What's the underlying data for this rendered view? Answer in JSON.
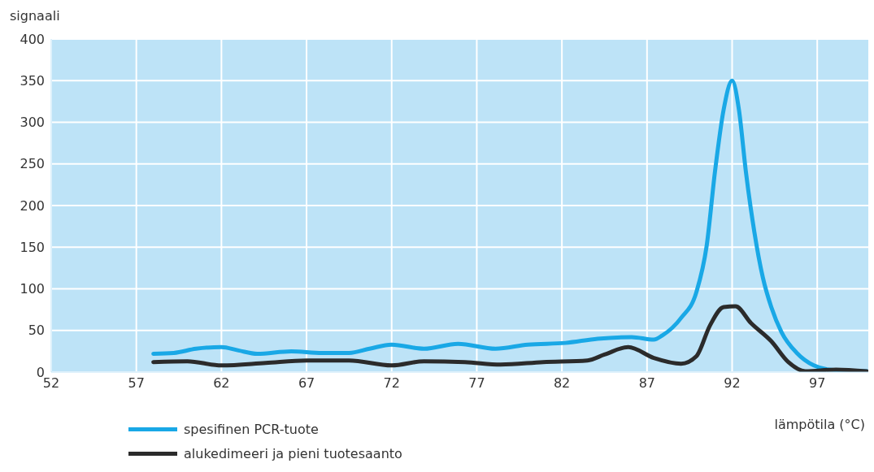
{
  "chart_data": {
    "type": "line",
    "ylabel": "signaali",
    "xlabel": "lämpötila (°C)",
    "xlim": [
      52,
      100
    ],
    "xticks": [
      52,
      57,
      62,
      67,
      72,
      77,
      82,
      87,
      92,
      97
    ],
    "ylim": [
      0,
      400
    ],
    "yticks": [
      0,
      50,
      100,
      150,
      200,
      250,
      300,
      350,
      400
    ],
    "grid": true,
    "legend": "bottom left",
    "marker": "none",
    "line_style": "solid",
    "series": [
      {
        "name": "spesifinen PCR-tuote",
        "color": "#19a8e6",
        "x": [
          58,
          59.2,
          60.5,
          62,
          63,
          64.1,
          66.1,
          67.9,
          69.5,
          70.7,
          72,
          73.9,
          75.9,
          78.1,
          80,
          82.2,
          84.1,
          86.1,
          87.4,
          87.9,
          89,
          89.9,
          90.5,
          91,
          91.5,
          92,
          92.4,
          92.8,
          93.3,
          93.8,
          94.3,
          94.9,
          95.8,
          96.8,
          97.7,
          99.9
        ],
        "values": [
          22,
          23,
          28,
          30,
          26,
          22,
          25,
          23,
          23,
          28,
          33,
          28,
          34,
          28,
          33,
          35,
          40,
          42,
          39,
          44,
          65,
          96,
          151,
          242,
          315,
          350,
          315,
          242,
          169,
          114,
          78,
          48,
          23,
          8,
          3,
          1
        ]
      },
      {
        "name": "alukedimeeri ja pieni tuotesaanto",
        "color": "#2b2b2b",
        "x": [
          58,
          60,
          62,
          64.6,
          67,
          69.5,
          72,
          73.9,
          76.3,
          78.4,
          80.9,
          83.5,
          84.5,
          85.9,
          87.4,
          89,
          89.9,
          90.7,
          91.5,
          92.2,
          93.1,
          94.3,
          95.3,
          96.3,
          98.1,
          99.9
        ],
        "values": [
          12,
          13,
          8,
          11,
          14,
          14,
          8,
          13,
          12,
          9,
          12,
          14,
          21,
          30,
          17,
          10,
          19,
          56,
          78,
          79,
          59,
          37,
          12,
          1,
          3,
          1
        ]
      }
    ]
  }
}
